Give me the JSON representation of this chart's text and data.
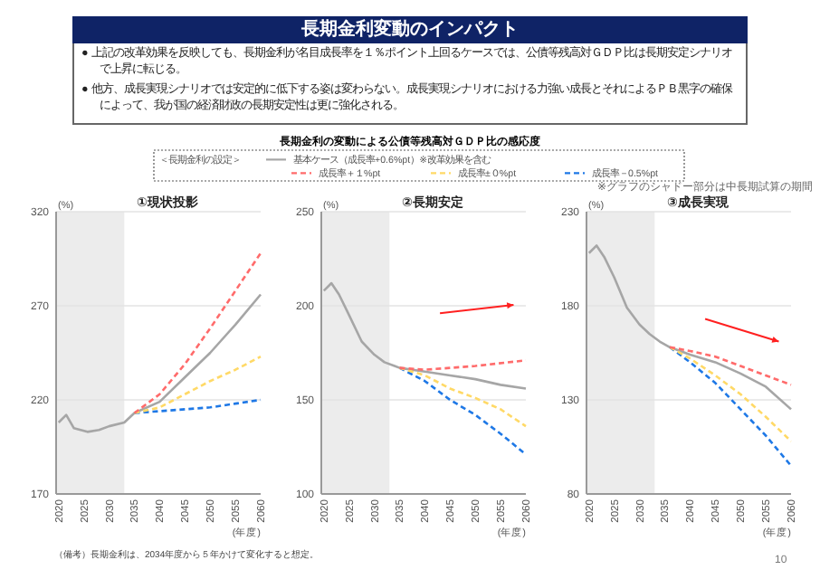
{
  "chart_data": [
    {
      "type": "other",
      "title": "長期金利変動のインパクト",
      "annotations": [
        "● 上記の改革効果を反映しても、長期金利が名目成長率を１％ポイント上回るケースでは、公債等残高対ＧＤＰ比は長期安定シナリオで上昇に転じる。",
        "● 他方、成長実現シナリオでは安定的に低下する姿は変わらない。成長実現シナリオにおける力強い成長とそれによるＰＢ黒字の確保によって、我が国の経済財政の長期安定性は更に強化される。",
        "長期金利の変動による公債等残高対ＧＤＰ比の感応度",
        "※グラフのシャドー部分は中長期試算の期間",
        "（備考）長期金利は、2034年度から５年かけて変化すると想定。",
        "10"
      ]
    },
    {
      "type": "line",
      "title": "①現状投影",
      "ylabel": "(%)",
      "xlabel": "(年度)",
      "legend": "top",
      "legend_title": "＜長期金利の設定＞",
      "xlim": [
        2019.5,
        2060
      ],
      "xticks": [
        2020,
        2025,
        2030,
        2035,
        2040,
        2045,
        2050,
        2055,
        2060
      ],
      "ylim": [
        170,
        320
      ],
      "yticks": [
        170,
        220,
        270,
        320
      ],
      "grid": "y",
      "marker": "none",
      "bands": [
        {
          "axis": "x",
          "from": 2019.5,
          "to": 2033,
          "color": "#ececec"
        }
      ],
      "series": [
        {
          "name": "基本ケース（成長率+0.6%pt）※改革効果を含む",
          "color": "#a6a6a6",
          "line_style": "solid",
          "x": [
            2020,
            2021.5,
            2023,
            2025.7,
            2028,
            2030,
            2033,
            2035,
            2040,
            2045,
            2050,
            2055,
            2060
          ],
          "values": [
            208,
            212,
            205,
            203,
            204,
            206,
            208,
            213,
            219,
            232,
            245,
            260,
            276
          ]
        },
        {
          "name": "成長率＋１%pt",
          "color": "#ff6b6b",
          "line_style": "dashed",
          "x": [
            2035,
            2040,
            2045,
            2050,
            2055,
            2060
          ],
          "values": [
            213,
            223,
            239,
            258,
            278,
            298
          ]
        },
        {
          "name": "成長率±０%pt",
          "color": "#ffd966",
          "line_style": "dashed",
          "x": [
            2035,
            2040,
            2045,
            2050,
            2055,
            2060
          ],
          "values": [
            213,
            216,
            223,
            230,
            236,
            243
          ]
        },
        {
          "name": "成長率－0.5%pt",
          "color": "#1e78e6",
          "line_style": "dashed",
          "x": [
            2035,
            2040,
            2045,
            2050,
            2055,
            2060
          ],
          "values": [
            213,
            214,
            215,
            216,
            218,
            220
          ]
        }
      ]
    },
    {
      "type": "line",
      "title": "②長期安定",
      "ylabel": "(%)",
      "xlabel": "(年度)",
      "xlim": [
        2019.5,
        2060
      ],
      "xticks": [
        2020,
        2025,
        2030,
        2035,
        2040,
        2045,
        2050,
        2055,
        2060
      ],
      "ylim": [
        100,
        250
      ],
      "yticks": [
        100,
        150,
        200,
        250
      ],
      "grid": "y",
      "marker": "none",
      "bands": [
        {
          "axis": "x",
          "from": 2019.5,
          "to": 2033,
          "color": "#ececec"
        }
      ],
      "series": [
        {
          "color": "#a6a6a6",
          "line_style": "solid",
          "x": [
            2020,
            2021.5,
            2023,
            2025,
            2027.5,
            2030,
            2032,
            2034,
            2035,
            2040,
            2045,
            2050,
            2055,
            2060
          ],
          "values": [
            208,
            212,
            206,
            195,
            181,
            174,
            170,
            168,
            167,
            165,
            163,
            161,
            158,
            156
          ]
        },
        {
          "color": "#ff6b6b",
          "line_style": "dashed",
          "x": [
            2035,
            2040,
            2050,
            2060
          ],
          "values": [
            167,
            166,
            168,
            171
          ]
        },
        {
          "color": "#ffd966",
          "line_style": "dashed",
          "x": [
            2035,
            2040,
            2045,
            2050,
            2055,
            2060
          ],
          "values": [
            167,
            163,
            156,
            151,
            145,
            136
          ]
        },
        {
          "color": "#1e78e6",
          "line_style": "dashed",
          "x": [
            2035,
            2040,
            2045,
            2050,
            2055,
            2060
          ],
          "values": [
            167,
            160,
            150,
            142,
            132,
            121
          ]
        }
      ]
    },
    {
      "type": "line",
      "title": "③成長実現",
      "ylabel": "(%)",
      "xlabel": "(年度)",
      "xlim": [
        2019.5,
        2060
      ],
      "xticks": [
        2020,
        2025,
        2030,
        2035,
        2040,
        2045,
        2050,
        2055,
        2060
      ],
      "ylim": [
        80,
        230
      ],
      "yticks": [
        80,
        130,
        180,
        230
      ],
      "grid": "y",
      "marker": "none",
      "bands": [
        {
          "axis": "x",
          "from": 2019.5,
          "to": 2033,
          "color": "#ececec"
        }
      ],
      "series": [
        {
          "color": "#a6a6a6",
          "line_style": "solid",
          "x": [
            2020,
            2021.5,
            2023,
            2025,
            2027.5,
            2030,
            2032,
            2034,
            2036,
            2040,
            2045,
            2050,
            2055,
            2060
          ],
          "values": [
            208,
            212,
            206,
            195,
            179,
            170,
            165,
            161,
            158,
            154,
            150,
            144,
            137,
            125
          ]
        },
        {
          "color": "#ff6b6b",
          "line_style": "dashed",
          "x": [
            2036,
            2040,
            2045,
            2050,
            2055,
            2060
          ],
          "values": [
            158,
            156,
            153,
            148,
            143,
            138
          ]
        },
        {
          "color": "#ffd966",
          "line_style": "dashed",
          "x": [
            2036,
            2040,
            2045,
            2050,
            2055,
            2060
          ],
          "values": [
            158,
            152,
            143,
            133,
            121,
            108
          ]
        },
        {
          "color": "#1e78e6",
          "line_style": "dashed",
          "x": [
            2036,
            2040,
            2045,
            2050,
            2055,
            2060
          ],
          "values": [
            158,
            150,
            139,
            125,
            111,
            95
          ]
        }
      ]
    }
  ]
}
